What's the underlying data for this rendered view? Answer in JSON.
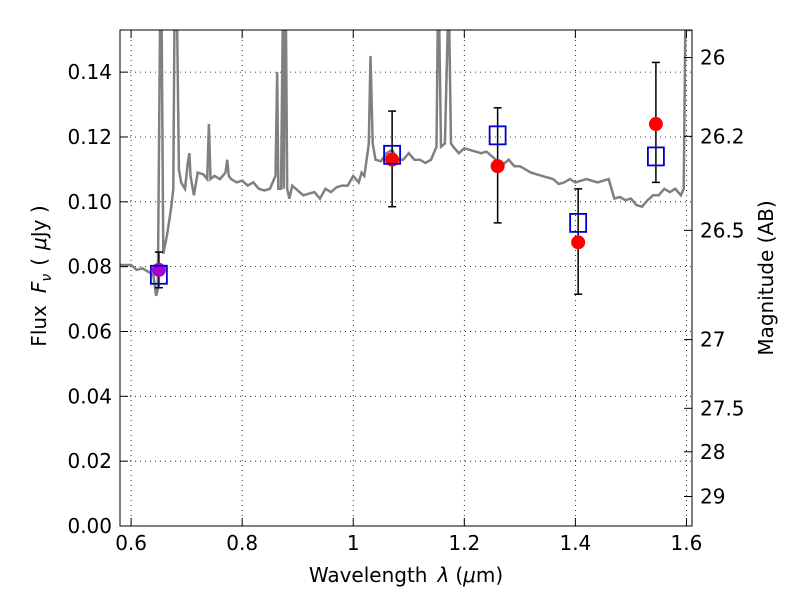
{
  "chart_data": {
    "type": "scatter",
    "xlabel": "Wavelength",
    "xlabel_symbol": "λ",
    "xlabel_unit_open": "(",
    "xlabel_unit_mu": "μ",
    "xlabel_unit_close": "m)",
    "ylabel": "Flux",
    "ylabel_symbol": "F",
    "ylabel_subscript": "ν",
    "ylabel_unit_open": "(",
    "ylabel_unit_mu": "μ",
    "ylabel_unit_close": "Jy )",
    "y2label": "Magnitude (AB)",
    "xlim": [
      0.58,
      1.61
    ],
    "ylim": [
      0.0,
      0.153
    ],
    "x_ticks": [
      0.6,
      0.8,
      1.0,
      1.2,
      1.4,
      1.6
    ],
    "x_tick_labels": [
      "0.6",
      "0.8",
      "1",
      "1.2",
      "1.4",
      "1.6"
    ],
    "y_ticks": [
      0.0,
      0.02,
      0.04,
      0.06,
      0.08,
      0.1,
      0.12,
      0.14
    ],
    "y_tick_labels": [
      "0.00",
      "0.02",
      "0.04",
      "0.06",
      "0.08",
      "0.10",
      "0.12",
      "0.14"
    ],
    "y2_ticks": [
      {
        "label": "26",
        "flux": 0.1445
      },
      {
        "label": "26.2",
        "flux": 0.1202
      },
      {
        "label": "26.5",
        "flux": 0.0912
      },
      {
        "label": "27",
        "flux": 0.0575
      },
      {
        "label": "27.5",
        "flux": 0.0363
      },
      {
        "label": "28",
        "flux": 0.0229
      },
      {
        "label": "29",
        "flux": 0.0091
      }
    ],
    "grid": true,
    "colors": {
      "template": "#808080",
      "model_points": "#ff0000",
      "observed_boxes": "#0000cc",
      "errorbars": "#000000",
      "overlap_marker": "#aa00cc"
    },
    "series": [
      {
        "kind": "line",
        "points": [
          [
            0.58,
            0.0805
          ],
          [
            0.6,
            0.0805
          ],
          [
            0.61,
            0.079
          ],
          [
            0.62,
            0.0795
          ],
          [
            0.63,
            0.0785
          ],
          [
            0.64,
            0.0775
          ],
          [
            0.645,
            0.071
          ],
          [
            0.648,
            0.073
          ],
          [
            0.652,
            0.153
          ],
          [
            0.655,
            0.153
          ],
          [
            0.658,
            0.084
          ],
          [
            0.665,
            0.09
          ],
          [
            0.672,
            0.098
          ],
          [
            0.676,
            0.104
          ],
          [
            0.678,
            0.153
          ],
          [
            0.683,
            0.153
          ],
          [
            0.686,
            0.11
          ],
          [
            0.69,
            0.106
          ],
          [
            0.697,
            0.104
          ],
          [
            0.702,
            0.112
          ],
          [
            0.705,
            0.115
          ],
          [
            0.707,
            0.108
          ],
          [
            0.713,
            0.102
          ],
          [
            0.72,
            0.109
          ],
          [
            0.73,
            0.1085
          ],
          [
            0.737,
            0.107
          ],
          [
            0.74,
            0.124
          ],
          [
            0.743,
            0.107
          ],
          [
            0.75,
            0.108
          ],
          [
            0.76,
            0.107
          ],
          [
            0.77,
            0.109
          ],
          [
            0.773,
            0.113
          ],
          [
            0.776,
            0.108
          ],
          [
            0.78,
            0.107
          ],
          [
            0.79,
            0.106
          ],
          [
            0.8,
            0.1065
          ],
          [
            0.81,
            0.105
          ],
          [
            0.82,
            0.106
          ],
          [
            0.83,
            0.104
          ],
          [
            0.84,
            0.1035
          ],
          [
            0.85,
            0.104
          ],
          [
            0.86,
            0.108
          ],
          [
            0.863,
            0.14
          ],
          [
            0.865,
            0.104
          ],
          [
            0.87,
            0.104
          ],
          [
            0.873,
            0.153
          ],
          [
            0.875,
            0.104
          ],
          [
            0.877,
            0.153
          ],
          [
            0.879,
            0.153
          ],
          [
            0.881,
            0.104
          ],
          [
            0.885,
            0.101
          ],
          [
            0.89,
            0.105
          ],
          [
            0.9,
            0.1035
          ],
          [
            0.91,
            0.102
          ],
          [
            0.92,
            0.1025
          ],
          [
            0.93,
            0.103
          ],
          [
            0.94,
            0.101
          ],
          [
            0.95,
            0.104
          ],
          [
            0.96,
            0.103
          ],
          [
            0.97,
            0.1045
          ],
          [
            0.98,
            0.105
          ],
          [
            0.99,
            0.105
          ],
          [
            1.0,
            0.108
          ],
          [
            1.01,
            0.106
          ],
          [
            1.015,
            0.109
          ],
          [
            1.02,
            0.108
          ],
          [
            1.025,
            0.114
          ],
          [
            1.028,
            0.118
          ],
          [
            1.031,
            0.145
          ],
          [
            1.035,
            0.118
          ],
          [
            1.04,
            0.113
          ],
          [
            1.05,
            0.1125
          ],
          [
            1.06,
            0.115
          ],
          [
            1.07,
            0.116
          ],
          [
            1.08,
            0.113
          ],
          [
            1.09,
            0.113
          ],
          [
            1.1,
            0.115
          ],
          [
            1.11,
            0.113
          ],
          [
            1.12,
            0.113
          ],
          [
            1.13,
            0.112
          ],
          [
            1.14,
            0.113
          ],
          [
            1.15,
            0.117
          ],
          [
            1.152,
            0.153
          ],
          [
            1.155,
            0.153
          ],
          [
            1.158,
            0.117
          ],
          [
            1.165,
            0.118
          ],
          [
            1.17,
            0.153
          ],
          [
            1.173,
            0.153
          ],
          [
            1.176,
            0.118
          ],
          [
            1.18,
            0.117
          ],
          [
            1.19,
            0.115
          ],
          [
            1.2,
            0.1165
          ],
          [
            1.21,
            0.116
          ],
          [
            1.22,
            0.1155
          ],
          [
            1.23,
            0.115
          ],
          [
            1.24,
            0.1155
          ],
          [
            1.25,
            0.114
          ],
          [
            1.26,
            0.1125
          ],
          [
            1.27,
            0.1115
          ],
          [
            1.28,
            0.113
          ],
          [
            1.29,
            0.111
          ],
          [
            1.3,
            0.111
          ],
          [
            1.32,
            0.109
          ],
          [
            1.34,
            0.108
          ],
          [
            1.36,
            0.107
          ],
          [
            1.37,
            0.1055
          ],
          [
            1.38,
            0.106
          ],
          [
            1.39,
            0.107
          ],
          [
            1.4,
            0.106
          ],
          [
            1.42,
            0.107
          ],
          [
            1.44,
            0.106
          ],
          [
            1.46,
            0.107
          ],
          [
            1.47,
            0.101
          ],
          [
            1.48,
            0.1015
          ],
          [
            1.49,
            0.1005
          ],
          [
            1.5,
            0.101
          ],
          [
            1.51,
            0.099
          ],
          [
            1.52,
            0.0985
          ],
          [
            1.53,
            0.1005
          ],
          [
            1.54,
            0.102
          ],
          [
            1.55,
            0.102
          ],
          [
            1.56,
            0.104
          ],
          [
            1.57,
            0.103
          ],
          [
            1.58,
            0.104
          ],
          [
            1.59,
            0.102
          ],
          [
            1.595,
            0.104
          ],
          [
            1.598,
            0.153
          ],
          [
            1.61,
            0.153
          ]
        ]
      },
      {
        "kind": "model_points",
        "points": [
          {
            "x": 0.65,
            "y": 0.079
          },
          {
            "x": 1.07,
            "y": 0.113
          },
          {
            "x": 1.26,
            "y": 0.111
          },
          {
            "x": 1.405,
            "y": 0.0875
          },
          {
            "x": 1.545,
            "y": 0.124
          }
        ]
      },
      {
        "kind": "observed",
        "points": [
          {
            "x": 0.65,
            "y": 0.0775,
            "err_low": 0.0735,
            "err_high": 0.0845
          },
          {
            "x": 1.07,
            "y": 0.1145,
            "err_low": 0.0985,
            "err_high": 0.128
          },
          {
            "x": 1.26,
            "y": 0.1205,
            "err_low": 0.0935,
            "err_high": 0.129
          },
          {
            "x": 1.405,
            "y": 0.0935,
            "err_low": 0.0715,
            "err_high": 0.104
          },
          {
            "x": 1.545,
            "y": 0.114,
            "err_low": 0.106,
            "err_high": 0.143
          }
        ]
      }
    ]
  }
}
